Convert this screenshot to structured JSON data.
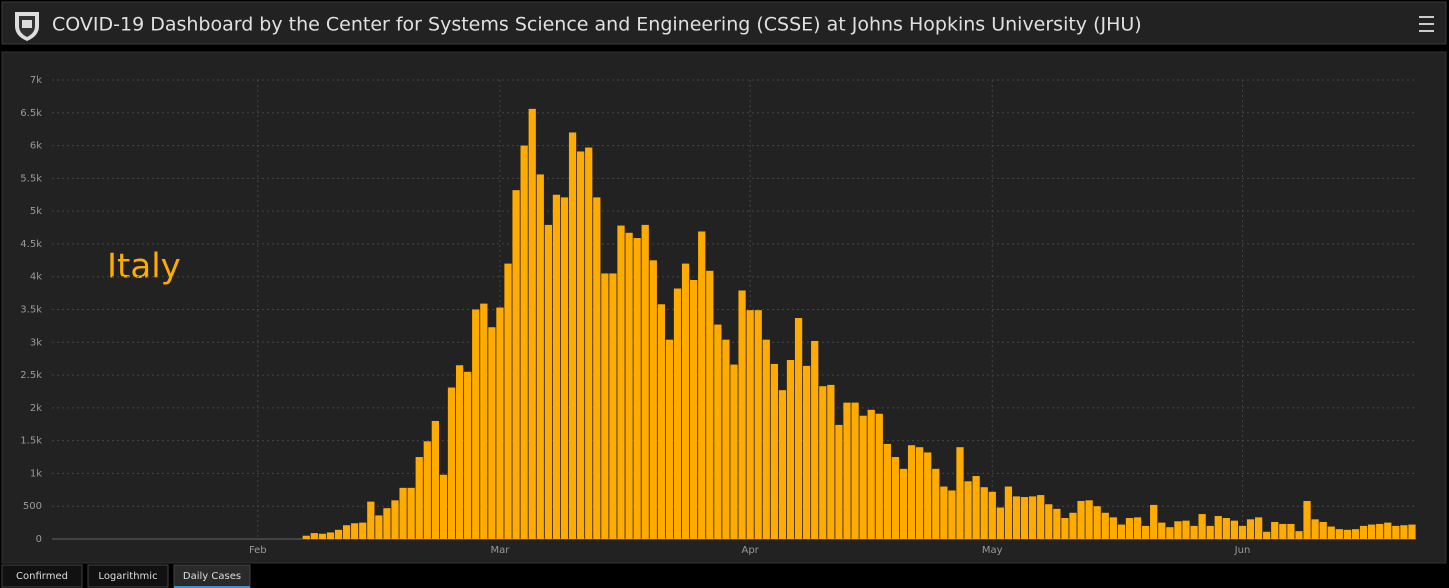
{
  "header": {
    "title": "COVID-19 Dashboard by the Center for Systems Science and Engineering (CSSE) at Johns Hopkins University (JHU)"
  },
  "tabs": [
    "Confirmed",
    "Logarithmic",
    "Daily Cases"
  ],
  "active_tab": 2,
  "chart_data": {
    "type": "bar",
    "annotation": "Italy",
    "color": "#ffab00",
    "grid": true,
    "categories": [
      null,
      null,
      null,
      null,
      null,
      null,
      null,
      null,
      null,
      null,
      null,
      null,
      null,
      null,
      null,
      null,
      null,
      null,
      null,
      null,
      null,
      null,
      null,
      null,
      null,
      "Feb",
      null,
      null,
      null,
      null,
      null,
      null,
      null,
      null,
      null,
      null,
      null,
      null,
      null,
      null,
      null,
      null,
      null,
      null,
      null,
      null,
      null,
      null,
      null,
      null,
      null,
      null,
      null,
      null,
      null,
      "Mar",
      null,
      null,
      null,
      null,
      null,
      null,
      null,
      null,
      null,
      null,
      null,
      null,
      null,
      null,
      null,
      null,
      null,
      null,
      null,
      null,
      null,
      null,
      null,
      null,
      null,
      null,
      null,
      null,
      null,
      null,
      "Apr",
      null,
      null,
      null,
      null,
      null,
      null,
      null,
      null,
      null,
      null,
      null,
      null,
      null,
      null,
      null,
      null,
      null,
      null,
      null,
      null,
      null,
      null,
      null,
      null,
      null,
      null,
      null,
      null,
      null,
      "May",
      null,
      null,
      null,
      null,
      null,
      null,
      null,
      null,
      null,
      null,
      null,
      null,
      null,
      null,
      null,
      null,
      null,
      null,
      null,
      null,
      null,
      null,
      null,
      null,
      null,
      null,
      null,
      null,
      null,
      null,
      "Jun",
      null,
      null,
      null,
      null,
      null,
      null,
      null,
      null,
      null,
      null,
      null,
      null,
      null,
      null,
      null,
      null,
      null,
      null,
      null,
      null,
      null
    ],
    "values": [
      0,
      0,
      0,
      0,
      0,
      0,
      0,
      0,
      0,
      0,
      0,
      0,
      0,
      0,
      0,
      0,
      0,
      0,
      0,
      0,
      0,
      0,
      0,
      0,
      0,
      0,
      0,
      0,
      0,
      0,
      0,
      50,
      90,
      80,
      100,
      140,
      210,
      240,
      250,
      570,
      360,
      470,
      590,
      780,
      780,
      1250,
      1490,
      1800,
      980,
      2310,
      2650,
      2550,
      3500,
      3590,
      3230,
      3530,
      4200,
      5320,
      6000,
      6560,
      5560,
      4790,
      5250,
      5210,
      6200,
      5910,
      5970,
      5210,
      4050,
      4050,
      4780,
      4670,
      4590,
      4790,
      4250,
      3580,
      3040,
      3820,
      4200,
      3950,
      4690,
      4090,
      3270,
      3040,
      2660,
      3790,
      3490,
      3490,
      3040,
      2670,
      2270,
      2730,
      3370,
      2640,
      3020,
      2330,
      2350,
      1740,
      2080,
      2080,
      1880,
      1970,
      1910,
      1450,
      1250,
      1070,
      1430,
      1400,
      1320,
      1070,
      800,
      740,
      1400,
      880,
      960,
      790,
      720,
      480,
      800,
      650,
      640,
      650,
      670,
      530,
      460,
      320,
      400,
      580,
      590,
      500,
      400,
      330,
      220,
      320,
      330,
      200,
      520,
      250,
      180,
      270,
      280,
      200,
      380,
      200,
      350,
      320,
      280,
      200,
      300,
      330,
      110,
      260,
      230,
      230,
      120,
      580,
      300,
      260,
      190,
      150,
      140,
      150,
      200,
      220,
      230,
      250,
      200,
      210,
      220
    ],
    "ylim": [
      0,
      7000
    ],
    "yticks": [
      0,
      500,
      {
        "value": 1000,
        "label": "1k"
      },
      {
        "value": 1500,
        "label": "1.5k"
      },
      {
        "value": 2000,
        "label": "2k"
      },
      {
        "value": 2500,
        "label": "2.5k"
      },
      {
        "value": 3000,
        "label": "3k"
      },
      {
        "value": 3500,
        "label": "3.5k"
      },
      {
        "value": 4000,
        "label": "4k"
      },
      {
        "value": 4500,
        "label": "4.5k"
      },
      {
        "value": 5000,
        "label": "5k"
      },
      {
        "value": 5500,
        "label": "5.5k"
      },
      {
        "value": 6000,
        "label": "6k"
      },
      {
        "value": 6500,
        "label": "6.5k"
      },
      {
        "value": 7000,
        "label": "7k"
      }
    ]
  }
}
